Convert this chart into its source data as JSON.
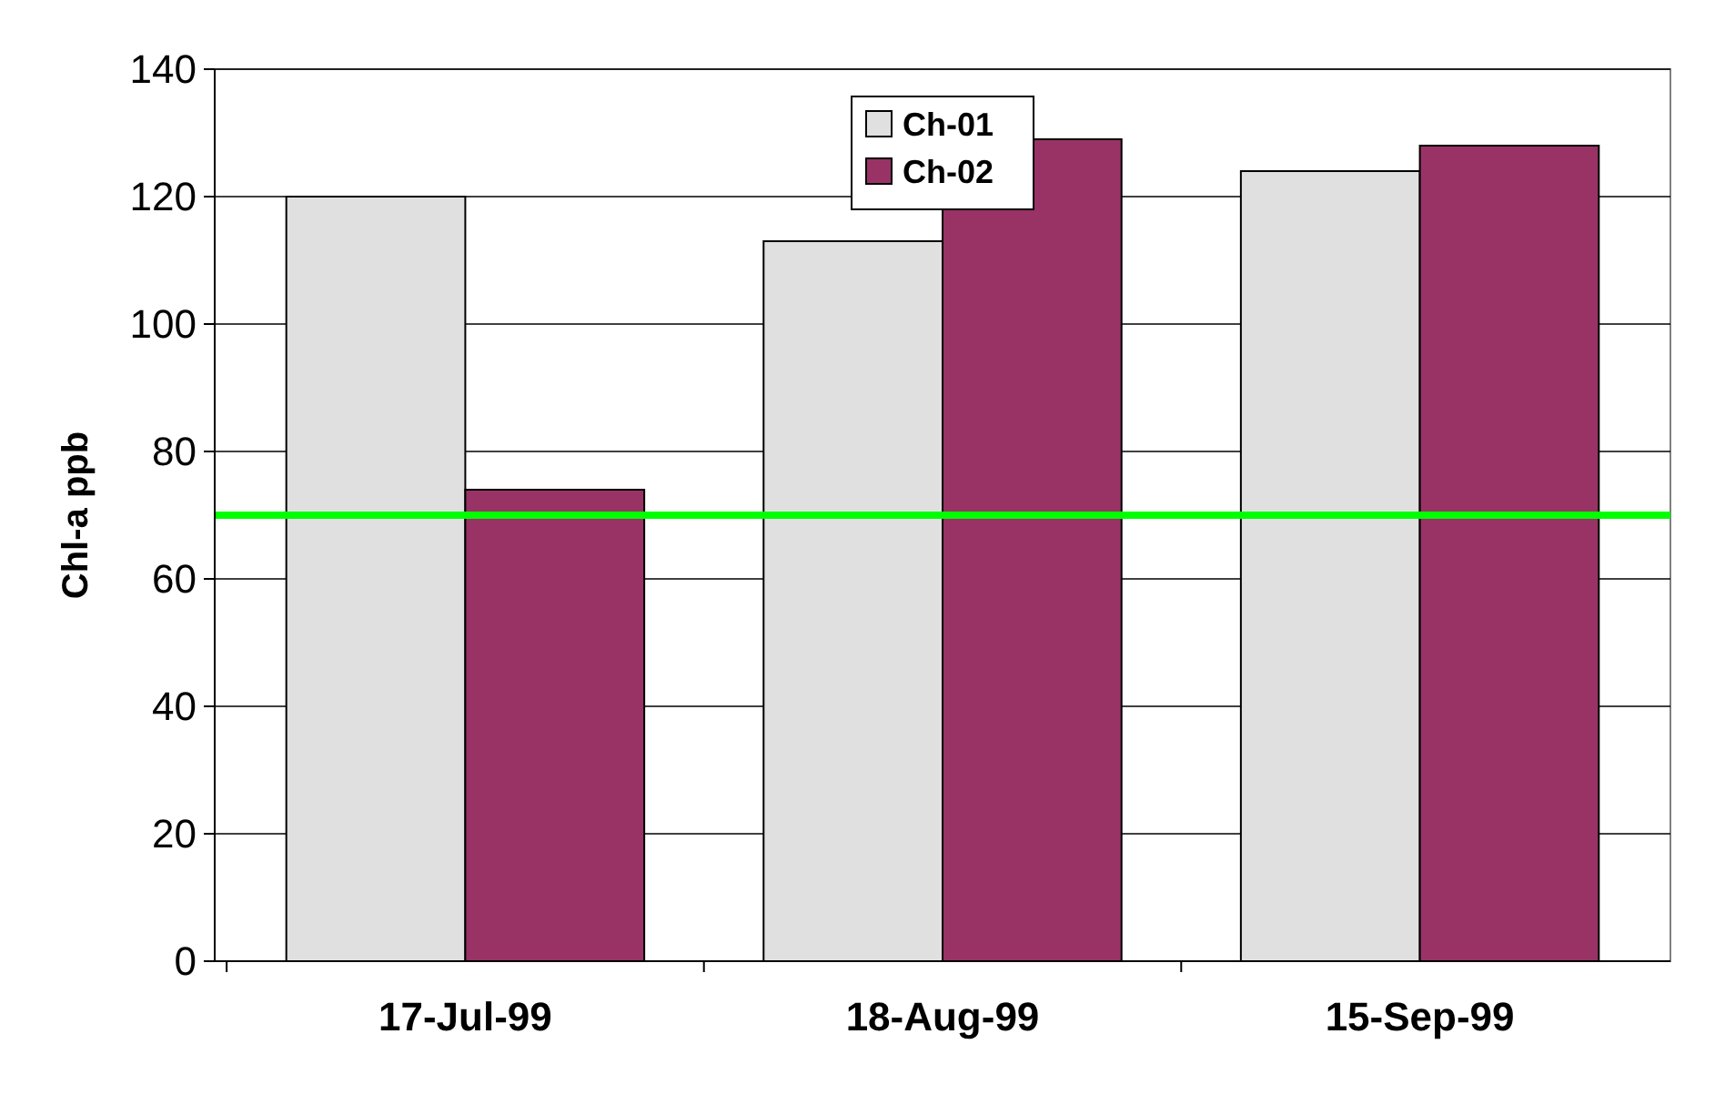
{
  "chart_data": {
    "type": "bar",
    "ylabel": "Chl-a ppb",
    "categories": [
      "17-Jul-99",
      "18-Aug-99",
      "15-Sep-99"
    ],
    "series": [
      {
        "name": "Ch-01",
        "color": "#e0e0e0",
        "values": [
          120,
          113,
          124
        ]
      },
      {
        "name": "Ch-02",
        "color": "#993366",
        "values": [
          74,
          129,
          128
        ]
      }
    ],
    "ylim": [
      0,
      140
    ],
    "yticks": [
      0,
      20,
      40,
      60,
      80,
      100,
      120,
      140
    ],
    "grid": "y",
    "legend": "top",
    "ref_lines": [
      {
        "axis": "y",
        "value": 70,
        "color": "#00ff00"
      }
    ]
  }
}
